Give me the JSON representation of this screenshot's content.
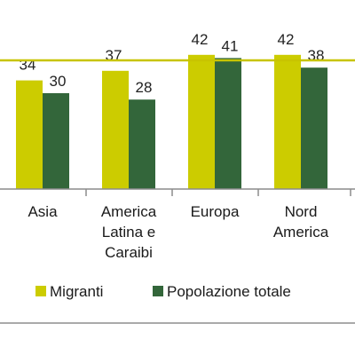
{
  "chart_data": {
    "type": "bar",
    "categories": [
      [
        "Asia"
      ],
      [
        "America",
        "Latina e",
        "Caraibi"
      ],
      [
        "Europa"
      ],
      [
        "Nord",
        "America"
      ]
    ],
    "series": [
      {
        "name": "Migranti",
        "values": [
          34,
          37,
          42,
          42
        ],
        "color": "#cccc00"
      },
      {
        "name": "Popolazione totale",
        "values": [
          30,
          28,
          41,
          38
        ],
        "color": "#33663a"
      }
    ],
    "reference_line": {
      "color": "#c8c400"
    },
    "axis_color": "#8c8c8c",
    "legend_position": "bottom"
  }
}
